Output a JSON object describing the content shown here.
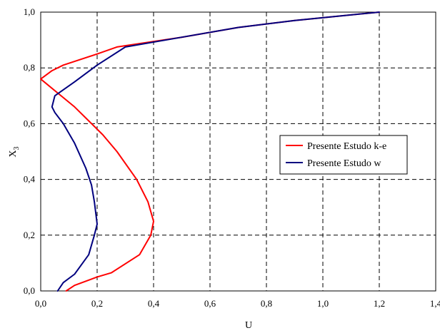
{
  "chart_data": {
    "type": "line",
    "title": "",
    "xlabel": "U",
    "ylabel_main": "X",
    "ylabel_sub": "3",
    "xlim": [
      0,
      1.4
    ],
    "ylim": [
      0,
      1.0
    ],
    "x_ticks": [
      0,
      0.2,
      0.4,
      0.6,
      0.8,
      1.0,
      1.2,
      1.4
    ],
    "x_tick_labels": [
      "0,0",
      "0,2",
      "0,4",
      "0,6",
      "0,8",
      "1,0",
      "1,2",
      "1,4"
    ],
    "y_ticks": [
      0,
      0.2,
      0.4,
      0.6,
      0.8,
      1.0
    ],
    "y_tick_labels": [
      "0,0",
      "0,2",
      "0,4",
      "0,6",
      "0,8",
      "1,0"
    ],
    "grid": true,
    "legend_position": "center-right",
    "series": [
      {
        "name": "Presente Estudo k-e",
        "color": "#ff0000",
        "points": [
          [
            0.09,
            0.0
          ],
          [
            0.12,
            0.02
          ],
          [
            0.2,
            0.05
          ],
          [
            0.25,
            0.065
          ],
          [
            0.35,
            0.13
          ],
          [
            0.39,
            0.2
          ],
          [
            0.4,
            0.25
          ],
          [
            0.38,
            0.32
          ],
          [
            0.34,
            0.4
          ],
          [
            0.27,
            0.5
          ],
          [
            0.22,
            0.56
          ],
          [
            0.17,
            0.61
          ],
          [
            0.12,
            0.66
          ],
          [
            0.06,
            0.71
          ],
          [
            0.0,
            0.76
          ],
          [
            0.04,
            0.79
          ],
          [
            0.08,
            0.81
          ],
          [
            0.2,
            0.85
          ],
          [
            0.27,
            0.875
          ],
          [
            0.5,
            0.91
          ],
          [
            0.7,
            0.945
          ],
          [
            0.9,
            0.97
          ],
          [
            1.2,
            1.0
          ]
        ]
      },
      {
        "name": "Presente Estudo w",
        "color": "#00007f",
        "points": [
          [
            0.06,
            0.0
          ],
          [
            0.08,
            0.03
          ],
          [
            0.12,
            0.06
          ],
          [
            0.17,
            0.13
          ],
          [
            0.19,
            0.2
          ],
          [
            0.2,
            0.24
          ],
          [
            0.19,
            0.32
          ],
          [
            0.18,
            0.38
          ],
          [
            0.16,
            0.44
          ],
          [
            0.12,
            0.53
          ],
          [
            0.08,
            0.6
          ],
          [
            0.05,
            0.64
          ],
          [
            0.04,
            0.66
          ],
          [
            0.05,
            0.7
          ],
          [
            0.12,
            0.75
          ],
          [
            0.2,
            0.81
          ],
          [
            0.3,
            0.875
          ],
          [
            0.5,
            0.91
          ],
          [
            0.7,
            0.945
          ],
          [
            0.9,
            0.97
          ],
          [
            1.2,
            1.0
          ]
        ]
      }
    ]
  }
}
